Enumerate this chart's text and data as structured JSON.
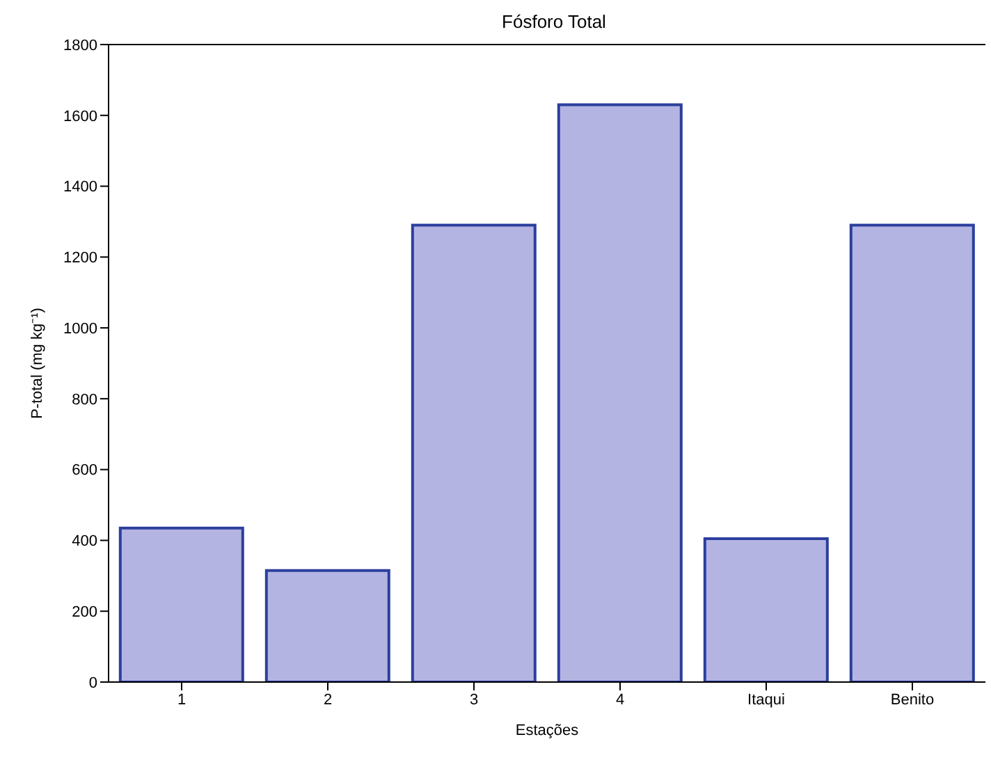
{
  "chart_data": {
    "type": "bar",
    "title": "Fósforo Total",
    "xlabel": "Estações",
    "ylabel": "P-total (mg kg⁻¹)",
    "categories": [
      "1",
      "2",
      "3",
      "4",
      "Itaqui",
      "Benito"
    ],
    "values": [
      435,
      315,
      1290,
      1630,
      405,
      1290
    ],
    "color": "#b4b4e2",
    "ylim": [
      0,
      1800
    ],
    "yticks": [
      0,
      200,
      400,
      600,
      800,
      1000,
      1200,
      1400,
      1600,
      1800
    ],
    "grid": false,
    "legend": false
  }
}
